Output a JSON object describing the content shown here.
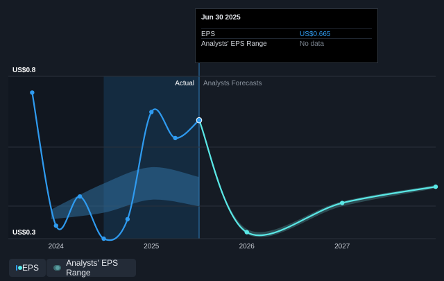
{
  "chart_data": {
    "type": "line",
    "y_axis": {
      "top_label": "US$0.8",
      "bottom_label": "US$0.3",
      "ylim": [
        0.3,
        0.8
      ]
    },
    "x_ticks": [
      "2024",
      "2025",
      "2026",
      "2027"
    ],
    "x_tick_values": [
      2024.0,
      2025.0,
      2026.0,
      2027.0
    ],
    "xlim": [
      2023.5,
      2027.98
    ],
    "divider_labels": {
      "actual": "Actual",
      "forecast": "Analysts Forecasts"
    },
    "actual_date": 2025.5,
    "series": [
      {
        "name": "EPS",
        "kind": "actual",
        "color": "#2f9bf0",
        "points": [
          {
            "x": 2023.75,
            "y": 0.75
          },
          {
            "x": 2024.0,
            "y": 0.34
          },
          {
            "x": 2024.25,
            "y": 0.43
          },
          {
            "x": 2024.5,
            "y": 0.3
          },
          {
            "x": 2024.75,
            "y": 0.36
          },
          {
            "x": 2025.0,
            "y": 0.69
          },
          {
            "x": 2025.25,
            "y": 0.61
          },
          {
            "x": 2025.5,
            "y": 0.665
          }
        ]
      },
      {
        "name": "EPS",
        "kind": "forecast",
        "color": "#5ae8e6",
        "points": [
          {
            "x": 2025.5,
            "y": 0.665
          },
          {
            "x": 2026.0,
            "y": 0.32
          },
          {
            "x": 2027.0,
            "y": 0.41
          },
          {
            "x": 2027.98,
            "y": 0.46
          }
        ]
      }
    ],
    "forecast_range": {
      "name": "Analysts' EPS Range",
      "color": "#3d6d72",
      "upper": [
        {
          "x": 2025.5,
          "y": 0.665
        },
        {
          "x": 2026.0,
          "y": 0.33
        },
        {
          "x": 2027.0,
          "y": 0.415
        },
        {
          "x": 2027.98,
          "y": 0.465
        }
      ],
      "lower": [
        {
          "x": 2025.5,
          "y": 0.665
        },
        {
          "x": 2026.0,
          "y": 0.315
        },
        {
          "x": 2027.0,
          "y": 0.4
        },
        {
          "x": 2027.98,
          "y": 0.455
        }
      ]
    },
    "historical_band": {
      "color": "#2f6f9f",
      "upper": [
        {
          "x": 2023.95,
          "y": 0.39
        },
        {
          "x": 2024.5,
          "y": 0.47
        },
        {
          "x": 2025.0,
          "y": 0.52
        },
        {
          "x": 2025.5,
          "y": 0.49
        }
      ],
      "lower": [
        {
          "x": 2023.95,
          "y": 0.36
        },
        {
          "x": 2024.5,
          "y": 0.38
        },
        {
          "x": 2025.0,
          "y": 0.42
        },
        {
          "x": 2025.5,
          "y": 0.4
        }
      ]
    },
    "grid": true
  },
  "tooltip": {
    "date": "Jun 30 2025",
    "rows": [
      {
        "label": "EPS",
        "value": "US$0.665",
        "value_color": "#2f9bf0"
      },
      {
        "label": "Analysts' EPS Range",
        "value": "No data",
        "value_color": "#7c8590"
      }
    ]
  },
  "legend": [
    {
      "label": "EPS",
      "color": "#2f9bf0",
      "dot": "#5ae8e6"
    },
    {
      "label": "Analysts' EPS Range",
      "color": "#3d6d72",
      "dot": "#5a9ea0"
    }
  ]
}
